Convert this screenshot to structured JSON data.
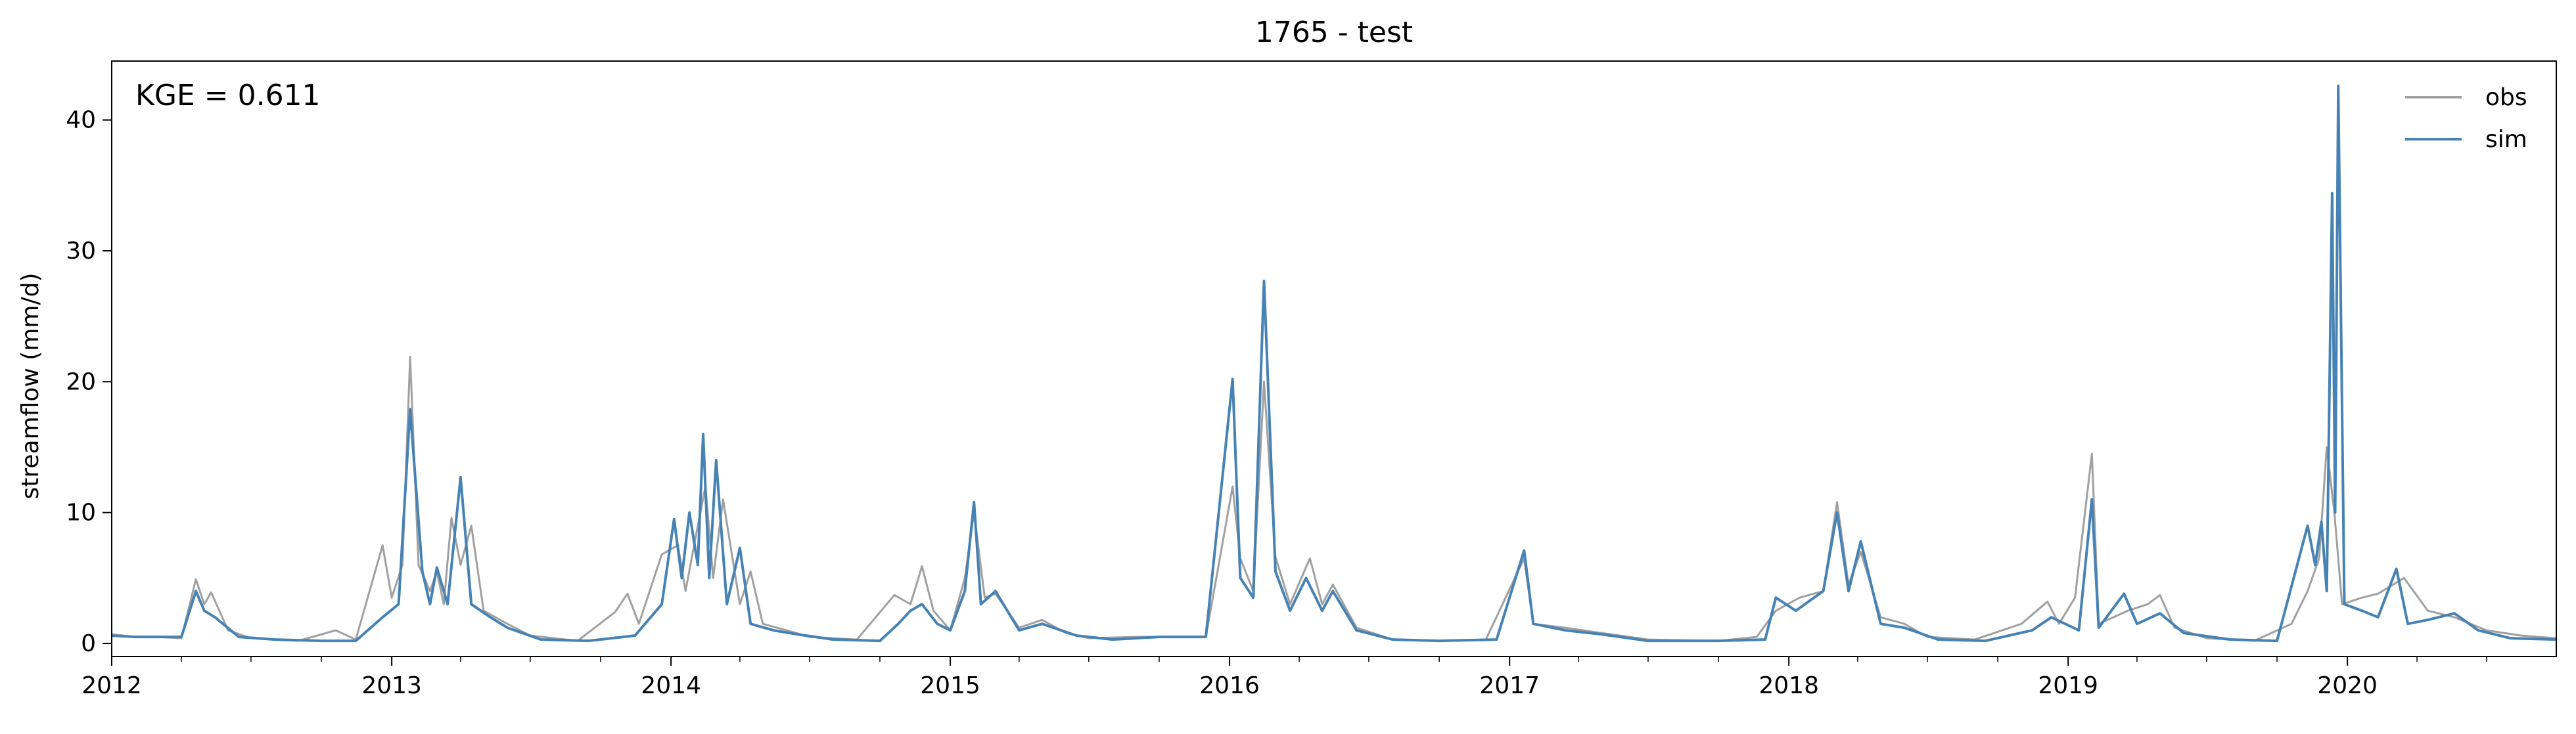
{
  "chart_data": {
    "type": "line",
    "title": "1765 - test",
    "xlabel": "",
    "ylabel": "streamflow (mm/d)",
    "xlim": [
      "2012-01-01",
      "2020-09-30"
    ],
    "ylim": [
      -1,
      44.5
    ],
    "x_ticks": [
      "2012",
      "2013",
      "2014",
      "2015",
      "2016",
      "2017",
      "2018",
      "2019",
      "2020"
    ],
    "y_ticks": [
      0,
      10,
      20,
      30,
      40
    ],
    "grid": false,
    "legend_position": "top-right",
    "annotation": "KGE = 0.611",
    "colors": {
      "obs": "#a0a0a0",
      "sim": "#4682b4"
    },
    "series": [
      {
        "name": "obs",
        "color": "#a0a0a0",
        "points": [
          [
            "2012-01-01",
            0.7
          ],
          [
            "2012-02-01",
            0.5
          ],
          [
            "2012-03-01",
            0.5
          ],
          [
            "2012-04-01",
            0.4
          ],
          [
            "2012-04-20",
            4.9
          ],
          [
            "2012-05-01",
            3.0
          ],
          [
            "2012-05-10",
            3.9
          ],
          [
            "2012-06-01",
            1.0
          ],
          [
            "2012-07-01",
            0.4
          ],
          [
            "2012-09-01",
            0.2
          ],
          [
            "2012-10-20",
            1.0
          ],
          [
            "2012-11-15",
            0.3
          ],
          [
            "2012-12-20",
            7.5
          ],
          [
            "2013-01-01",
            3.5
          ],
          [
            "2013-01-15",
            6.0
          ],
          [
            "2013-01-25",
            21.9
          ],
          [
            "2013-02-05",
            6.0
          ],
          [
            "2013-02-20",
            4.0
          ],
          [
            "2013-03-01",
            5.5
          ],
          [
            "2013-03-10",
            3.0
          ],
          [
            "2013-03-20",
            9.6
          ],
          [
            "2013-04-01",
            6.0
          ],
          [
            "2013-04-15",
            9.0
          ],
          [
            "2013-05-01",
            2.5
          ],
          [
            "2013-06-01",
            1.5
          ],
          [
            "2013-07-01",
            0.6
          ],
          [
            "2013-09-01",
            0.2
          ],
          [
            "2013-10-20",
            2.4
          ],
          [
            "2013-11-05",
            3.8
          ],
          [
            "2013-11-20",
            1.5
          ],
          [
            "2013-12-20",
            6.8
          ],
          [
            "2014-01-10",
            7.5
          ],
          [
            "2014-01-20",
            4.0
          ],
          [
            "2014-02-05",
            9.0
          ],
          [
            "2014-02-15",
            12.0
          ],
          [
            "2014-02-25",
            5.0
          ],
          [
            "2014-03-10",
            11.0
          ],
          [
            "2014-04-01",
            3.0
          ],
          [
            "2014-04-15",
            5.5
          ],
          [
            "2014-05-01",
            1.5
          ],
          [
            "2014-06-01",
            1.0
          ],
          [
            "2014-07-01",
            0.5
          ],
          [
            "2014-09-01",
            0.3
          ],
          [
            "2014-10-20",
            3.7
          ],
          [
            "2014-11-10",
            3.0
          ],
          [
            "2014-11-25",
            5.9
          ],
          [
            "2014-12-10",
            2.5
          ],
          [
            "2015-01-01",
            1.0
          ],
          [
            "2015-01-20",
            5.0
          ],
          [
            "2015-02-01",
            10.0
          ],
          [
            "2015-02-15",
            3.5
          ],
          [
            "2015-03-01",
            3.8
          ],
          [
            "2015-04-01",
            1.2
          ],
          [
            "2015-05-01",
            1.8
          ],
          [
            "2015-06-01",
            0.8
          ],
          [
            "2015-07-01",
            0.4
          ],
          [
            "2015-09-01",
            0.5
          ],
          [
            "2015-12-01",
            0.5
          ],
          [
            "2016-01-05",
            12.0
          ],
          [
            "2016-01-15",
            6.5
          ],
          [
            "2016-02-01",
            4.0
          ],
          [
            "2016-02-15",
            20.0
          ],
          [
            "2016-03-01",
            6.6
          ],
          [
            "2016-03-20",
            3.0
          ],
          [
            "2016-04-15",
            6.5
          ],
          [
            "2016-05-01",
            3.0
          ],
          [
            "2016-05-15",
            4.5
          ],
          [
            "2016-06-15",
            1.2
          ],
          [
            "2016-08-01",
            0.3
          ],
          [
            "2016-10-01",
            0.2
          ],
          [
            "2016-12-01",
            0.3
          ],
          [
            "2017-01-20",
            6.5
          ],
          [
            "2017-02-01",
            1.5
          ],
          [
            "2017-03-15",
            1.2
          ],
          [
            "2017-05-01",
            0.8
          ],
          [
            "2017-07-01",
            0.3
          ],
          [
            "2017-10-01",
            0.2
          ],
          [
            "2017-11-20",
            0.5
          ],
          [
            "2017-12-15",
            2.5
          ],
          [
            "2018-01-15",
            3.5
          ],
          [
            "2018-02-15",
            4.0
          ],
          [
            "2018-03-05",
            10.8
          ],
          [
            "2018-03-20",
            4.5
          ],
          [
            "2018-04-05",
            7.0
          ],
          [
            "2018-05-01",
            2.0
          ],
          [
            "2018-06-01",
            1.5
          ],
          [
            "2018-07-01",
            0.5
          ],
          [
            "2018-09-01",
            0.3
          ],
          [
            "2018-11-01",
            1.5
          ],
          [
            "2018-12-05",
            3.2
          ],
          [
            "2018-12-20",
            1.5
          ],
          [
            "2019-01-10",
            3.5
          ],
          [
            "2019-02-01",
            14.5
          ],
          [
            "2019-02-10",
            1.5
          ],
          [
            "2019-03-20",
            2.5
          ],
          [
            "2019-04-15",
            3.0
          ],
          [
            "2019-05-01",
            3.7
          ],
          [
            "2019-05-20",
            1.2
          ],
          [
            "2019-07-01",
            0.4
          ],
          [
            "2019-09-01",
            0.2
          ],
          [
            "2019-10-20",
            1.5
          ],
          [
            "2019-11-10",
            4.0
          ],
          [
            "2019-11-25",
            6.5
          ],
          [
            "2019-12-05",
            15.0
          ],
          [
            "2019-12-15",
            10.0
          ],
          [
            "2019-12-25",
            3.0
          ],
          [
            "2020-01-20",
            3.5
          ],
          [
            "2020-02-10",
            3.8
          ],
          [
            "2020-03-15",
            5.0
          ],
          [
            "2020-04-15",
            2.5
          ],
          [
            "2020-05-20",
            2.0
          ],
          [
            "2020-07-01",
            1.0
          ],
          [
            "2020-08-15",
            0.6
          ],
          [
            "2020-09-30",
            0.4
          ]
        ]
      },
      {
        "name": "sim",
        "color": "#4682b4",
        "points": [
          [
            "2012-01-01",
            0.6
          ],
          [
            "2012-02-01",
            0.5
          ],
          [
            "2012-03-01",
            0.5
          ],
          [
            "2012-04-01",
            0.5
          ],
          [
            "2012-04-20",
            4.0
          ],
          [
            "2012-05-01",
            2.5
          ],
          [
            "2012-05-15",
            2.0
          ],
          [
            "2012-06-15",
            0.5
          ],
          [
            "2012-08-01",
            0.3
          ],
          [
            "2012-10-01",
            0.2
          ],
          [
            "2012-11-15",
            0.2
          ],
          [
            "2012-12-20",
            2.0
          ],
          [
            "2013-01-10",
            3.0
          ],
          [
            "2013-01-25",
            17.9
          ],
          [
            "2013-02-10",
            5.5
          ],
          [
            "2013-02-20",
            3.0
          ],
          [
            "2013-03-01",
            5.8
          ],
          [
            "2013-03-15",
            3.0
          ],
          [
            "2013-04-01",
            12.7
          ],
          [
            "2013-04-15",
            3.0
          ],
          [
            "2013-05-10",
            2.0
          ],
          [
            "2013-06-01",
            1.2
          ],
          [
            "2013-07-15",
            0.3
          ],
          [
            "2013-09-15",
            0.2
          ],
          [
            "2013-11-15",
            0.6
          ],
          [
            "2013-12-20",
            3.0
          ],
          [
            "2014-01-05",
            9.5
          ],
          [
            "2014-01-15",
            5.0
          ],
          [
            "2014-01-25",
            10.0
          ],
          [
            "2014-02-05",
            6.0
          ],
          [
            "2014-02-12",
            16.0
          ],
          [
            "2014-02-20",
            5.0
          ],
          [
            "2014-03-01",
            14.0
          ],
          [
            "2014-03-15",
            3.0
          ],
          [
            "2014-04-01",
            7.3
          ],
          [
            "2014-04-15",
            1.5
          ],
          [
            "2014-05-15",
            1.0
          ],
          [
            "2014-06-15",
            0.7
          ],
          [
            "2014-08-01",
            0.3
          ],
          [
            "2014-10-01",
            0.2
          ],
          [
            "2014-10-25",
            1.5
          ],
          [
            "2014-11-10",
            2.5
          ],
          [
            "2014-11-25",
            3.0
          ],
          [
            "2014-12-15",
            1.5
          ],
          [
            "2015-01-01",
            1.0
          ],
          [
            "2015-01-20",
            4.0
          ],
          [
            "2015-02-01",
            10.8
          ],
          [
            "2015-02-10",
            3.0
          ],
          [
            "2015-03-01",
            4.0
          ],
          [
            "2015-04-01",
            1.0
          ],
          [
            "2015-05-01",
            1.5
          ],
          [
            "2015-06-15",
            0.6
          ],
          [
            "2015-08-01",
            0.3
          ],
          [
            "2015-10-01",
            0.5
          ],
          [
            "2015-12-01",
            0.5
          ],
          [
            "2016-01-05",
            20.2
          ],
          [
            "2016-01-15",
            5.0
          ],
          [
            "2016-02-01",
            3.5
          ],
          [
            "2016-02-15",
            27.7
          ],
          [
            "2016-03-01",
            5.5
          ],
          [
            "2016-03-20",
            2.5
          ],
          [
            "2016-04-10",
            5.0
          ],
          [
            "2016-05-01",
            2.5
          ],
          [
            "2016-05-15",
            4.0
          ],
          [
            "2016-06-15",
            1.0
          ],
          [
            "2016-08-01",
            0.3
          ],
          [
            "2016-10-01",
            0.2
          ],
          [
            "2016-12-15",
            0.3
          ],
          [
            "2017-01-20",
            7.1
          ],
          [
            "2017-02-01",
            1.5
          ],
          [
            "2017-03-15",
            1.0
          ],
          [
            "2017-05-01",
            0.7
          ],
          [
            "2017-07-01",
            0.2
          ],
          [
            "2017-10-01",
            0.2
          ],
          [
            "2017-12-01",
            0.3
          ],
          [
            "2017-12-15",
            3.5
          ],
          [
            "2018-01-10",
            2.5
          ],
          [
            "2018-02-15",
            4.0
          ],
          [
            "2018-03-05",
            10.0
          ],
          [
            "2018-03-20",
            4.0
          ],
          [
            "2018-04-05",
            7.8
          ],
          [
            "2018-05-01",
            1.5
          ],
          [
            "2018-06-01",
            1.2
          ],
          [
            "2018-07-15",
            0.3
          ],
          [
            "2018-09-15",
            0.2
          ],
          [
            "2018-11-15",
            1.0
          ],
          [
            "2018-12-10",
            2.0
          ],
          [
            "2019-01-15",
            1.0
          ],
          [
            "2019-02-01",
            11.0
          ],
          [
            "2019-02-10",
            1.2
          ],
          [
            "2019-03-15",
            3.8
          ],
          [
            "2019-04-01",
            1.5
          ],
          [
            "2019-05-01",
            2.3
          ],
          [
            "2019-06-01",
            0.8
          ],
          [
            "2019-08-01",
            0.3
          ],
          [
            "2019-10-01",
            0.2
          ],
          [
            "2019-11-10",
            9.0
          ],
          [
            "2019-11-20",
            6.0
          ],
          [
            "2019-11-28",
            9.3
          ],
          [
            "2019-12-05",
            4.0
          ],
          [
            "2019-12-12",
            34.4
          ],
          [
            "2019-12-16",
            10.0
          ],
          [
            "2019-12-20",
            42.6
          ],
          [
            "2019-12-28",
            3.0
          ],
          [
            "2020-01-20",
            2.5
          ],
          [
            "2020-02-10",
            2.0
          ],
          [
            "2020-03-05",
            5.7
          ],
          [
            "2020-03-20",
            1.5
          ],
          [
            "2020-04-15",
            1.8
          ],
          [
            "2020-05-20",
            2.3
          ],
          [
            "2020-06-20",
            1.0
          ],
          [
            "2020-08-01",
            0.4
          ],
          [
            "2020-09-30",
            0.3
          ]
        ]
      }
    ]
  }
}
